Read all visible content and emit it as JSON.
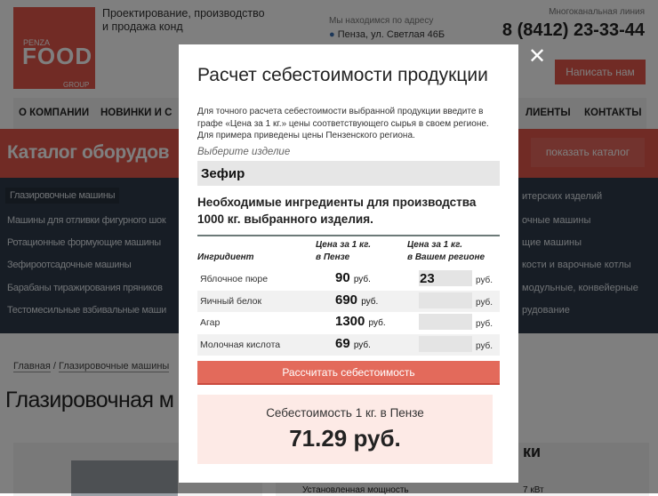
{
  "header": {
    "logo": {
      "top": "PENZA",
      "main": "FOOD",
      "bottom": "GROUP"
    },
    "tagline": [
      "Проектирование, производство",
      "и продажа конд"
    ],
    "address_label": "Мы находимся по адресу",
    "address": "Пенза, ул. Светлая 46Б",
    "phone_label": "Многоканальная линия",
    "phone": "8 (8412) 23-33-44",
    "write_button": "Написать нам"
  },
  "nav": [
    "О КОМПАНИИ",
    "НОВИНКИ И С",
    "ЛИЕНТЫ",
    "КОНТАКТЫ"
  ],
  "catalog": {
    "title": "Каталог оборудов",
    "show_button": "показать каталог",
    "left": [
      "Глазировочные машины",
      "Машины для отливки фигурного шок",
      "Ротационные формующие машины",
      "Зефироотсадочные машины",
      "Барабаны тиражирования пряников",
      "Тестомесильные взбивальные маши"
    ],
    "right": [
      "итерских изделий",
      "очные машины",
      "щие машины",
      "кости и варочные котлы",
      "модульные, конвейерные",
      "рудование"
    ]
  },
  "breadcrumb": [
    "Главная",
    "Глазировочные машины"
  ],
  "page_title": "Глазировочная м",
  "specs": {
    "heading_fragment": "ки",
    "row_label": "Установленная мощность",
    "row_value": "7 кВт"
  },
  "modal": {
    "title": "Расчет себестоимости продукции",
    "intro": "Для точного расчета себестоимости выбранной продукции введите в графе «Цена за 1 кг.» цены соответствующего сырья в своем регионе. Для примера приведены цены Пензенского региона.",
    "select_label": "Выберите изделие",
    "selected_product": "Зефир",
    "ingredients_heading": "Необходимые ингредиенты для производства 1000 кг. выбранного изделия.",
    "columns": [
      "Ингридиент",
      "Цена за 1 кг.\nв Пензе",
      "Цена за 1 кг.\nв Вашем регионе"
    ],
    "currency": "руб.",
    "rows": [
      {
        "name": "Яблочное пюре",
        "price": "90",
        "region": "23"
      },
      {
        "name": "Яичный белок",
        "price": "690",
        "region": ""
      },
      {
        "name": "Агар",
        "price": "1300",
        "region": ""
      },
      {
        "name": "Молочная кислота",
        "price": "69",
        "region": ""
      }
    ],
    "calc_button": "Рассчитать себестоимость",
    "result_label": "Себестоимость 1 кг. в Пензе",
    "result_value": "71.29 руб.",
    "close_icon": "close-icon"
  },
  "colors": {
    "accent": "#e2564a",
    "button": "#e36a5b",
    "result_bg": "#fdeae6"
  }
}
